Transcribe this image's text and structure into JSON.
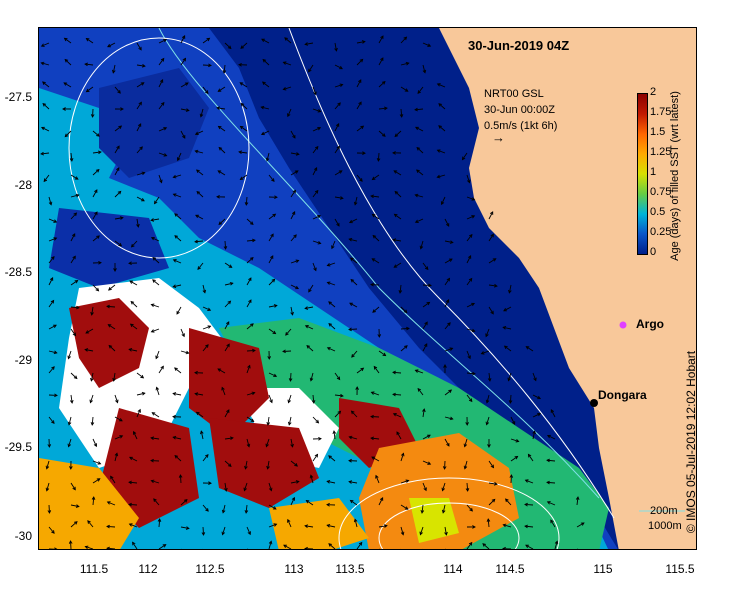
{
  "title": "30-Jun-2019 04Z",
  "product": {
    "line1": "NRT00 GSL",
    "line2": "30-Jun 00:00Z",
    "line3": "0.5m/s (1kt 6h)"
  },
  "colorbar": {
    "label": "Age (days) of filled SST (wrt latest)",
    "ticks": [
      "2",
      "1.75",
      "1.5",
      "1.25",
      "1",
      "0.75",
      "0.5",
      "0.25",
      "0"
    ],
    "colors": [
      "#8b0000",
      "#c21800",
      "#ff6600",
      "#ffaa00",
      "#d7e000",
      "#66cc44",
      "#00b4d8",
      "#0a55c8",
      "#001f8a"
    ]
  },
  "axes": {
    "y_ticks": [
      "-27.5",
      "-28",
      "-28.5",
      "-29",
      "-29.5",
      "-30"
    ],
    "x_ticks": [
      "111.5",
      "112",
      "112.5",
      "113",
      "113.5",
      "114",
      "114.5",
      "115",
      "115.5"
    ]
  },
  "places": {
    "argo": "Argo",
    "dongara": "Dongara"
  },
  "legend": {
    "contour1": "200m",
    "contour2": "1000m"
  },
  "credit": "© IMOS 05-Jul-2019 12:02 Hobart",
  "colors": {
    "land": "#f8c89a",
    "ocean_deep": "#00208a",
    "white": "#ffffff"
  }
}
